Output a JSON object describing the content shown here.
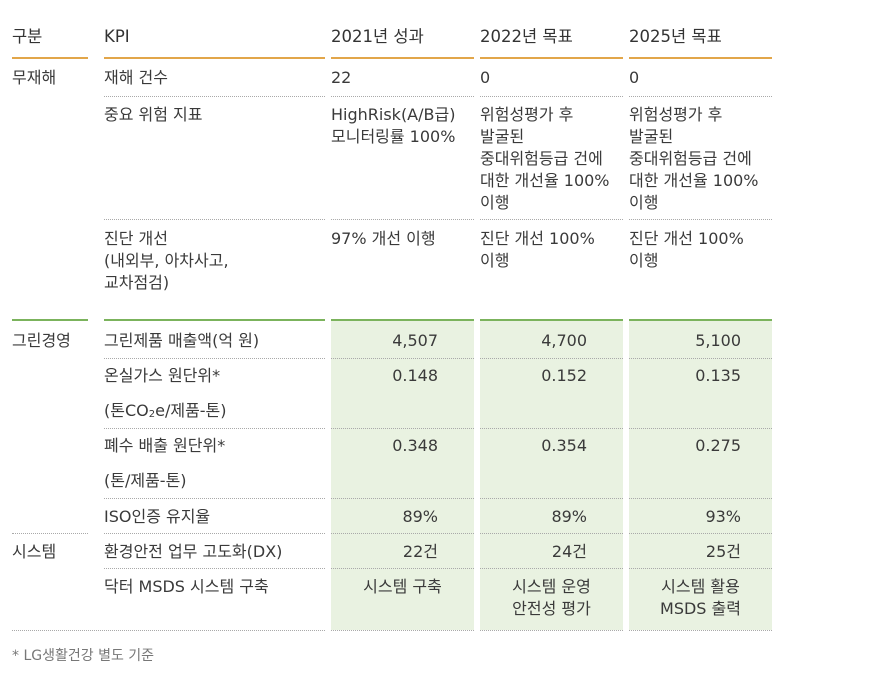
{
  "header": {
    "category": "구분",
    "kpi": "KPI",
    "col2021": "2021년 성과",
    "col2022": "2022년 목표",
    "col2025": "2025년 목표"
  },
  "accident_free": {
    "label": "무재해",
    "rows": [
      {
        "kpi": "재해 건수",
        "y2021": "22",
        "y2022": "0",
        "y2025": "0"
      },
      {
        "kpi": "중요 위험 지표",
        "y2021": "HighRisk(A/B급)\n모니터링률 100%",
        "y2022": "위험성평가 후\n발굴된\n중대위험등급 건에\n대한 개선율 100%\n이행",
        "y2025": "위험성평가 후\n발굴된\n중대위험등급 건에\n대한 개선율 100%\n이행"
      },
      {
        "kpi": "진단 개선\n(내외부, 아차사고,\n교차점검)",
        "y2021": "97% 개선 이행",
        "y2022": "진단 개선 100%\n이행",
        "y2025": "진단 개선 100%\n이행"
      }
    ]
  },
  "green": {
    "label": "그린경영",
    "rows": [
      {
        "kpi": "그린제품 매출액(억 원)",
        "y2021": "4,507",
        "y2022": "4,700",
        "y2025": "5,100"
      },
      {
        "kpi": "온실가스 원단위*",
        "unit_prefix": "(톤CO",
        "unit_sub": "2",
        "unit_suffix": "e/제품-톤)",
        "y2021": "0.148",
        "y2022": "0.152",
        "y2025": "0.135"
      },
      {
        "kpi": "폐수 배출 원단위*",
        "unit": "(톤/제품-톤)",
        "y2021": "0.348",
        "y2022": "0.354",
        "y2025": "0.275"
      },
      {
        "kpi": "ISO인증 유지율",
        "y2021": "89%",
        "y2022": "89%",
        "y2025": "93%"
      }
    ]
  },
  "system": {
    "label": "시스템",
    "rows": [
      {
        "kpi": "환경안전 업무 고도화(DX)",
        "y2021": "22건",
        "y2022": "24건",
        "y2025": "25건"
      },
      {
        "kpi": "닥터 MSDS 시스템 구축",
        "y2021": "시스템 구축",
        "y2022": "시스템 운영\n안전성 평가",
        "y2025": "시스템 활용\nMSDS 출력"
      }
    ]
  },
  "footnote": "* LG생활건강 별도 기준",
  "colors": {
    "header_rule": "#e2a64a",
    "green_rule": "#7bb35c",
    "green_fill": "#e9f2e1"
  }
}
